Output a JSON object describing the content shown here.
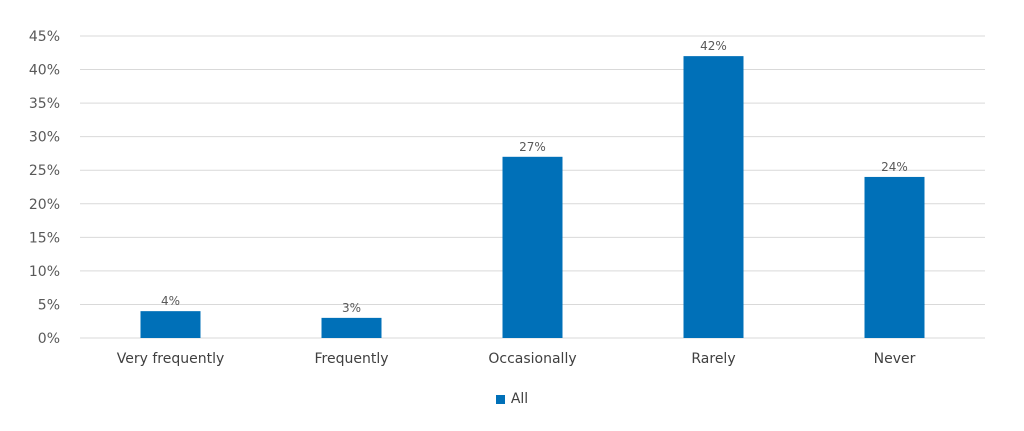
{
  "chart_data": {
    "type": "bar",
    "categories": [
      "Very frequently",
      "Frequently",
      "Occasionally",
      "Rarely",
      "Never"
    ],
    "series": [
      {
        "name": "All",
        "values": [
          4,
          3,
          27,
          42,
          24
        ],
        "color": "#0070b8"
      }
    ],
    "data_labels": [
      "4%",
      "3%",
      "27%",
      "42%",
      "24%"
    ],
    "y_ticks": [
      "0%",
      "5%",
      "10%",
      "15%",
      "20%",
      "25%",
      "30%",
      "35%",
      "40%",
      "45%"
    ],
    "ylim": [
      0,
      45
    ],
    "grid": true,
    "legend_position": "bottom"
  }
}
